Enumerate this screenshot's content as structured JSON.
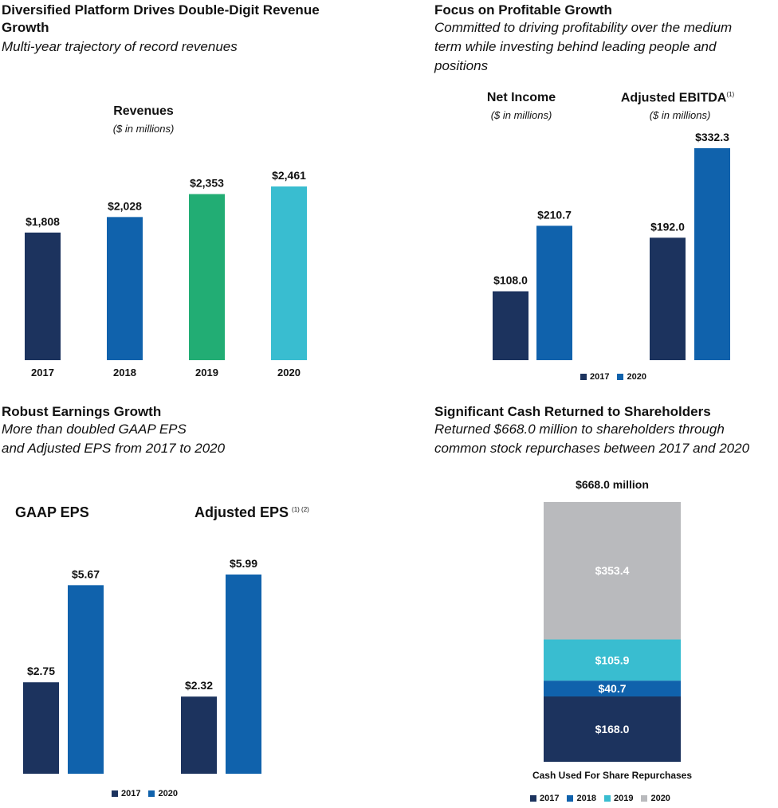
{
  "colors": {
    "y2017": "#1c335e",
    "y2018": "#1062ac",
    "y2019": "#22ad74",
    "y2020_rev": "#39bdd0",
    "y2020": "#1062ac",
    "stack2019": "#39bdd0",
    "stack2020": "#b9babd"
  },
  "panels": {
    "revenue": {
      "title_line1": "Diversified Platform Drives Double-Digit Revenue",
      "title_line2": "Growth",
      "subtitle": "Multi-year trajectory of record revenues",
      "chart_title": "Revenues",
      "units": "($ in millions)"
    },
    "profit": {
      "title": "Focus on Profitable Growth",
      "subtitle_lines": [
        "Committed to driving profitability over the medium",
        "term while investing behind leading people and",
        "positions"
      ],
      "net_income_title": "Net Income",
      "net_income_units": "($ in millions)",
      "ebitda_title": "Adjusted EBITDA",
      "ebitda_sup": "(1)",
      "ebitda_units": "($ in millions)"
    },
    "eps": {
      "title": "Robust Earnings Growth",
      "subtitle_lines": [
        "More than doubled GAAP EPS",
        "and Adjusted EPS from 2017 to 2020"
      ],
      "gaap_title": "GAAP EPS",
      "adj_title": "Adjusted EPS",
      "adj_sup": "(1)  (2)"
    },
    "cash": {
      "title": "Significant Cash Returned to Shareholders",
      "subtitle_lines": [
        "Returned $668.0 million to shareholders through",
        "common stock repurchases between 2017 and 2020"
      ],
      "total_label": "$668.0 million",
      "axis_label": "Cash Used For Share Repurchases"
    }
  },
  "legend_two": [
    {
      "label": "2017",
      "color": "#1c335e"
    },
    {
      "label": "2020",
      "color": "#1062ac"
    }
  ],
  "legend_four": [
    {
      "label": "2017",
      "color": "#1c335e"
    },
    {
      "label": "2018",
      "color": "#1062ac"
    },
    {
      "label": "2019",
      "color": "#39bdd0"
    },
    {
      "label": "2020",
      "color": "#b9babd"
    }
  ],
  "chart_data": [
    {
      "type": "bar",
      "title": "Revenues",
      "subtitle": "($ in millions)",
      "categories": [
        "2017",
        "2018",
        "2019",
        "2020"
      ],
      "values": [
        1808,
        2028,
        2353,
        2461
      ],
      "labels": [
        "$1,808",
        "$2,028",
        "$2,353",
        "$2,461"
      ],
      "colors": [
        "#1c335e",
        "#1062ac",
        "#22ad74",
        "#39bdd0"
      ],
      "xlabel": "",
      "ylabel": "",
      "grid": false
    },
    {
      "type": "bar",
      "title": "Net Income",
      "subtitle": "($ in millions)",
      "categories": [
        "2017",
        "2020"
      ],
      "values": [
        108.0,
        210.7
      ],
      "labels": [
        "$108.0",
        "$210.7"
      ],
      "grid": false
    },
    {
      "type": "bar",
      "title": "Adjusted EBITDA",
      "subtitle": "($ in millions)",
      "categories": [
        "2017",
        "2020"
      ],
      "values": [
        192.0,
        332.3
      ],
      "labels": [
        "$192.0",
        "$332.3"
      ],
      "grid": false
    },
    {
      "type": "bar",
      "title": "GAAP EPS",
      "categories": [
        "2017",
        "2020"
      ],
      "values": [
        2.75,
        5.67
      ],
      "labels": [
        "$2.75",
        "$5.67"
      ],
      "grid": false
    },
    {
      "type": "bar",
      "title": "Adjusted EPS",
      "categories": [
        "2017",
        "2020"
      ],
      "values": [
        2.32,
        5.99
      ],
      "labels": [
        "$2.32",
        "$5.99"
      ],
      "grid": false
    },
    {
      "type": "bar",
      "title": "$668.0 million",
      "xlabel": "Cash Used For Share Repurchases",
      "stacked": true,
      "series": [
        {
          "name": "2017",
          "values": [
            168.0
          ],
          "label": "$168.0"
        },
        {
          "name": "2018",
          "values": [
            40.7
          ],
          "label": "$40.7"
        },
        {
          "name": "2019",
          "values": [
            105.9
          ],
          "label": "$105.9"
        },
        {
          "name": "2020",
          "values": [
            353.4
          ],
          "label": "$353.4"
        }
      ],
      "total": 668.0,
      "grid": false
    }
  ]
}
